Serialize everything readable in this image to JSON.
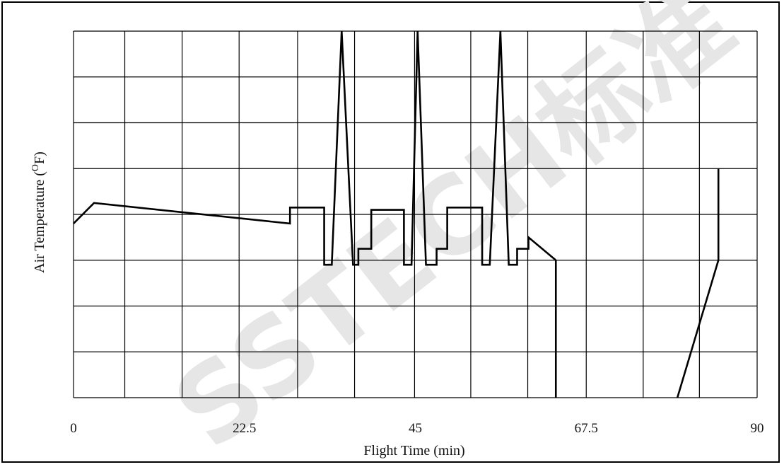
{
  "chart_data": {
    "type": "line",
    "xlabel": "Flight Time (min)",
    "ylabel_main": "Air Temperature (",
    "ylabel_sup": "O",
    "ylabel_tail": "F)",
    "xlim": [
      0,
      90
    ],
    "ylim": [
      0,
      8
    ],
    "x_ticks": [
      "0",
      "22.5",
      "45",
      "67.5",
      "90"
    ],
    "x_tick_values": [
      0,
      22.5,
      45,
      67.5,
      90
    ],
    "x_grid": [
      0,
      6.75,
      14.3,
      21.8,
      29.5,
      37.0,
      44.9,
      52.3,
      59.8,
      67.5,
      75.0,
      82.4,
      90
    ],
    "y_grid": [
      0,
      1,
      2,
      3,
      4,
      5,
      6,
      7,
      8
    ],
    "grid": true,
    "watermark": "SSTECH标准",
    "series": [
      {
        "segments": [
          [
            [
              0,
              3.8
            ],
            [
              2.7,
              4.25
            ],
            [
              28.5,
              3.8
            ],
            [
              28.5,
              4.15
            ],
            [
              33,
              4.15
            ],
            [
              33,
              2.9
            ],
            [
              34,
              2.9
            ],
            [
              35.3,
              8
            ],
            [
              36.8,
              2.9
            ],
            [
              37.5,
              2.9
            ],
            [
              37.5,
              3.25
            ],
            [
              39.2,
              3.25
            ],
            [
              39.2,
              4.1
            ],
            [
              43.5,
              4.1
            ],
            [
              43.5,
              2.9
            ],
            [
              44.5,
              2.9
            ],
            [
              45.3,
              8
            ],
            [
              46.4,
              2.9
            ],
            [
              47.8,
              2.9
            ],
            [
              47.8,
              3.25
            ],
            [
              49.2,
              3.25
            ],
            [
              49.2,
              4.15
            ],
            [
              53.8,
              4.15
            ],
            [
              53.8,
              2.9
            ],
            [
              54.8,
              2.9
            ],
            [
              56.2,
              8
            ],
            [
              57.3,
              2.9
            ],
            [
              58.4,
              2.9
            ],
            [
              58.4,
              3.25
            ],
            [
              59.9,
              3.25
            ],
            [
              59.9,
              3.5
            ],
            [
              63.5,
              3
            ]
          ],
          [
            [
              63.5,
              3
            ],
            [
              63.5,
              0
            ]
          ],
          [
            [
              79.5,
              0
            ],
            [
              84.9,
              3
            ],
            [
              84.9,
              5
            ]
          ]
        ]
      }
    ]
  }
}
